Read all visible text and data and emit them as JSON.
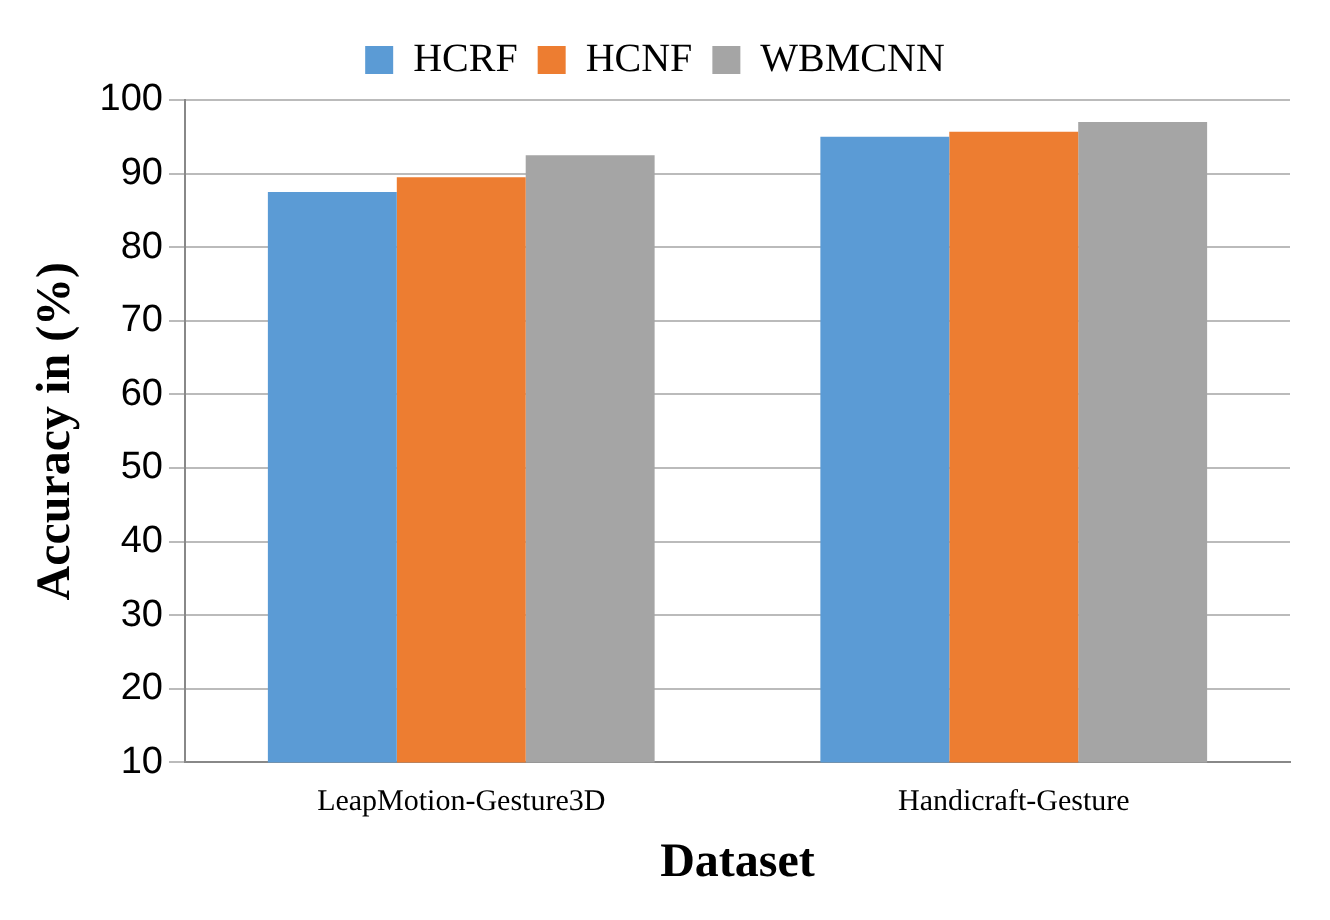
{
  "chart_data": {
    "type": "bar",
    "xlabel": "Dataset",
    "ylabel": "Accuracy in (%)",
    "categories": [
      "LeapMotion-Gesture3D",
      "Handicraft-Gesture"
    ],
    "series": [
      {
        "name": "HCRF",
        "color": "#5b9bd5",
        "values": [
          87.5,
          95
        ]
      },
      {
        "name": "HCNF",
        "color": "#ed7d31",
        "values": [
          89.5,
          95.7
        ]
      },
      {
        "name": "WBMCNN",
        "color": "#a5a5a5",
        "values": [
          92.5,
          97
        ]
      }
    ],
    "ylim": [
      10,
      100
    ],
    "yticks": [
      10,
      20,
      30,
      40,
      50,
      60,
      70,
      80,
      90,
      100
    ],
    "grid": "y",
    "legend": "top"
  }
}
